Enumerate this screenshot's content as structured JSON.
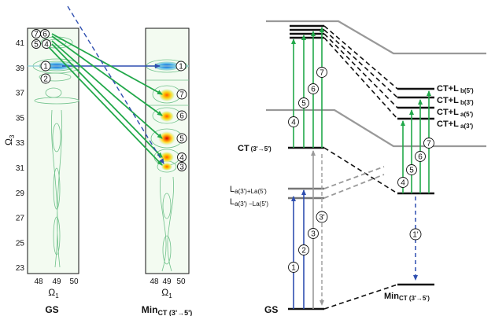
{
  "left_panel": {
    "y_axis_label": "Ω",
    "y_axis_sub": "3",
    "y_ticks": [
      "41",
      "39",
      "37",
      "35",
      "33",
      "31",
      "29",
      "27",
      "25",
      "23"
    ],
    "gs_map": {
      "x_ticks": [
        "48",
        "49",
        "50"
      ],
      "x_axis_label": "Ω",
      "x_axis_sub": "1",
      "title": "GS",
      "peak_labels": [
        "7",
        "6",
        "5",
        "4",
        "1",
        "2"
      ]
    },
    "min_map": {
      "x_ticks": [
        "48",
        "49",
        "50"
      ],
      "x_axis_label": "Ω",
      "x_axis_sub": "1",
      "title": "Min",
      "title_sub": "CT (3'→5')",
      "peak_labels": [
        "1",
        "7",
        "6",
        "5",
        "4",
        "3"
      ]
    }
  },
  "right_panel": {
    "states": {
      "ct": "CT",
      "ct_sub": "(3'→5')",
      "la_plus": "L",
      "la_plus_sub": "a(3')+La(5')",
      "la_minus": "L",
      "la_minus_sub": "a(3') −La(5')",
      "gs": "GS",
      "min": "Min",
      "min_sub": "CT (3'→5')",
      "ct_lb5": "CT+L",
      "ct_lb5_sub": " b(5')",
      "ct_lb3": "CT+L",
      "ct_lb3_sub": " b(3')",
      "ct_la5": "CT+L",
      "ct_la5_sub": " a(5')",
      "ct_la3": "CT+L",
      "ct_la3_sub": " a(3')"
    },
    "transitions_gs": [
      "1",
      "2",
      "3",
      "3'"
    ],
    "transitions_ct": [
      "4",
      "5",
      "6",
      "7"
    ],
    "transitions_min": [
      "4",
      "5",
      "6",
      "7"
    ],
    "decay_label": "1'"
  },
  "colors": {
    "green": "#22a84a",
    "blue": "#2f4fb0",
    "gray": "#999999",
    "dark": "#111111"
  }
}
